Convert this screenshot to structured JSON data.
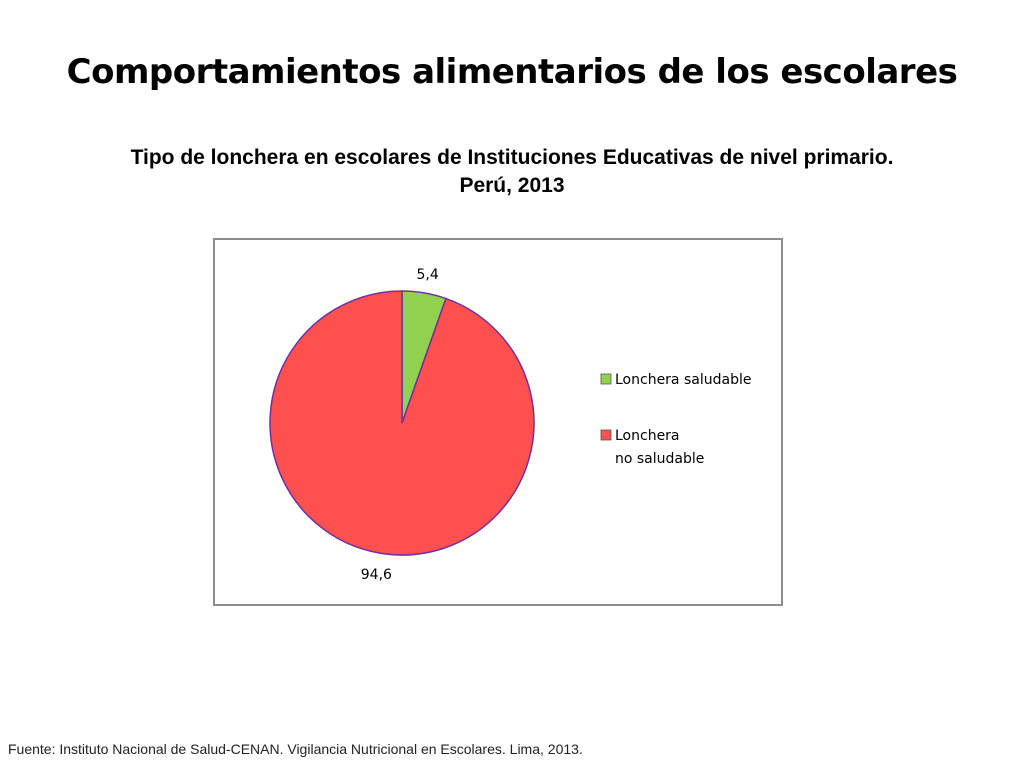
{
  "slide": {
    "title": "Comportamientos alimentarios de los escolares",
    "subtitle_line1": "Tipo de lonchera en escolares de Instituciones Educativas de nivel primario.",
    "subtitle_line2": "Perú, 2013",
    "source": "Fuente: Instituto Nacional de Salud-CENAN. Vigilancia Nutricional en Escolares. Lima, 2013."
  },
  "chart_data": {
    "type": "pie",
    "slices": [
      {
        "label": "Lonchera saludable",
        "legend_lines": [
          "Lonchera saludable"
        ],
        "value": 5.4,
        "value_label": "5,4",
        "color": "#92d050"
      },
      {
        "label": "Lonchera no saludable",
        "legend_lines": [
          "Lonchera",
          "no saludable"
        ],
        "value": 94.6,
        "value_label": "94,6",
        "color": "#ff5050"
      }
    ],
    "slice_border_color": "#7030a0",
    "legend_position": "right",
    "start_angle_deg": 0,
    "direction": "clockwise"
  }
}
